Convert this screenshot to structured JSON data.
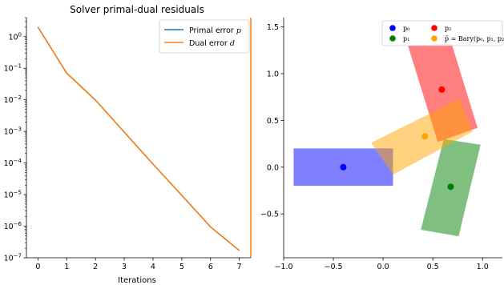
{
  "chart_data": [
    {
      "type": "line",
      "title": "Solver primal-dual residuals",
      "xlabel": "Iterations",
      "ylabel": "",
      "yscale": "log",
      "xlim": [
        -0.4,
        7.4
      ],
      "ylim": [
        1e-07,
        4
      ],
      "x": [
        0,
        1,
        2,
        3,
        4,
        5,
        6,
        7
      ],
      "x_tick_labels": [
        "0",
        "1",
        "2",
        "3",
        "4",
        "5",
        "6",
        "7"
      ],
      "y_ticks": [
        1.0,
        0.1,
        0.01,
        0.001,
        0.0001,
        1e-05,
        1e-06,
        1e-07
      ],
      "y_tick_labels": [
        {
          "base": "10",
          "exp": "0"
        },
        {
          "base": "10",
          "exp": "−1"
        },
        {
          "base": "10",
          "exp": "−2"
        },
        {
          "base": "10",
          "exp": "−3"
        },
        {
          "base": "10",
          "exp": "−4"
        },
        {
          "base": "10",
          "exp": "−5"
        },
        {
          "base": "10",
          "exp": "−6"
        },
        {
          "base": "10",
          "exp": "−7"
        }
      ],
      "series": [
        {
          "name": "Primal error p",
          "color": "#1f77b4",
          "values": [
            2.0,
            0.07,
            0.0098,
            0.00095,
            9.25e-05,
            9.5e-06,
            9.5e-07,
            1.7e-07
          ]
        },
        {
          "name": "Dual error d",
          "color": "#ff7f0e",
          "values": [
            2.0,
            0.07,
            0.0098,
            0.00095,
            9.25e-05,
            9.5e-06,
            9.5e-07,
            1.7e-07
          ]
        }
      ],
      "legend": {
        "position": "top-right",
        "entries": [
          {
            "text": "Primal error ",
            "math": "p",
            "color": "#1f77b4"
          },
          {
            "text": "Dual error ",
            "math": "d",
            "color": "#ff7f0e"
          }
        ]
      },
      "grid": false
    },
    {
      "type": "scatter",
      "title": "",
      "xlabel": "",
      "ylabel": "",
      "xlim": [
        -1.0,
        1.2
      ],
      "ylim": [
        -0.97,
        1.6
      ],
      "x_ticks": [
        -1.0,
        -0.5,
        0.0,
        0.5,
        1.0
      ],
      "x_tick_labels": [
        "−1.0",
        "−0.5",
        "0.0",
        "0.5",
        "1.0"
      ],
      "y_ticks": [
        -0.5,
        0.0,
        0.5,
        1.0,
        1.5
      ],
      "y_tick_labels": [
        "−0.5",
        "0.0",
        "0.5",
        "1.0",
        "1.5"
      ],
      "rectangles": [
        {
          "name": "p0-box",
          "color": "#0000ff",
          "opacity": 0.5,
          "corners": [
            [
              -0.9,
              -0.2
            ],
            [
              0.1,
              -0.2
            ],
            [
              0.1,
              0.2
            ],
            [
              -0.9,
              0.2
            ]
          ]
        },
        {
          "name": "p1-box",
          "color": "#008000",
          "opacity": 0.5,
          "corners": [
            [
              0.38,
              -0.67
            ],
            [
              0.76,
              -0.74
            ],
            [
              0.98,
              0.24
            ],
            [
              0.61,
              0.3
            ]
          ]
        },
        {
          "name": "p2-box",
          "color": "#ff0000",
          "opacity": 0.5,
          "corners": [
            [
              0.25,
              1.3
            ],
            [
              0.69,
              1.32
            ],
            [
              0.95,
              0.42
            ],
            [
              0.55,
              0.27
            ]
          ]
        },
        {
          "name": "bary-box",
          "color": "#ffa500",
          "opacity": 0.5,
          "corners": [
            [
              -0.12,
              0.26
            ],
            [
              0.77,
              0.73
            ],
            [
              0.9,
              0.38
            ],
            [
              0.1,
              -0.08
            ]
          ]
        }
      ],
      "points": [
        {
          "name": "p0",
          "x": -0.4,
          "y": 0.0,
          "color": "#0000ff"
        },
        {
          "name": "p1",
          "x": 0.68,
          "y": -0.21,
          "color": "#008000"
        },
        {
          "name": "p2",
          "x": 0.59,
          "y": 0.83,
          "color": "#ff0000"
        },
        {
          "name": "bary",
          "x": 0.42,
          "y": 0.33,
          "color": "#ffa500"
        }
      ],
      "legend": {
        "position": "top-right",
        "entries": [
          {
            "label": "p₀",
            "color": "#0000ff"
          },
          {
            "label": "p₂",
            "color": "#ff0000"
          },
          {
            "label": "p₁",
            "color": "#008000"
          },
          {
            "label": "p̄ = Bary(p₀, p₁, p₂)",
            "color": "#ffa500"
          }
        ]
      },
      "grid": false
    }
  ]
}
